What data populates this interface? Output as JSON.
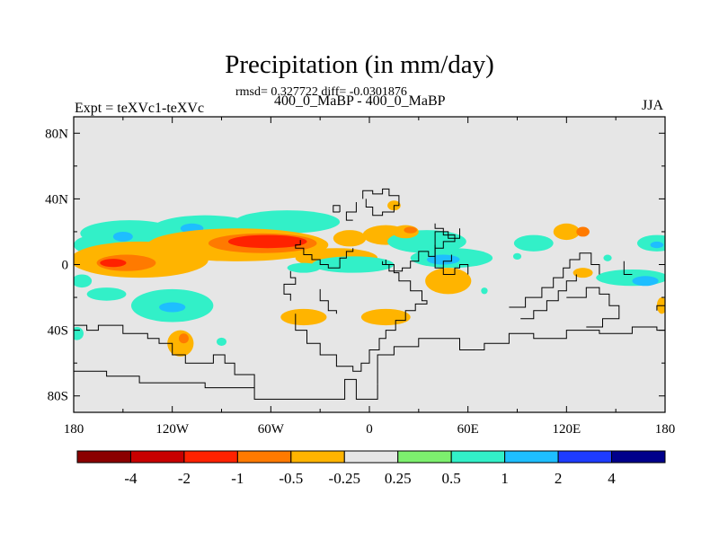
{
  "chart_data": {
    "type": "heatmap",
    "title": "Precipitation (in mm/day)",
    "subtitle": "400_0_MaBP - 400_0_MaBP",
    "stats_text": "rmsd= 0.327722 diff= -0.0301876",
    "left_label": "Expt = teXVc1-teXVc",
    "right_label": "JJA",
    "xlim": [
      -180,
      180
    ],
    "ylim": [
      -90,
      90
    ],
    "x_ticks": [
      {
        "value": -180,
        "label": "180"
      },
      {
        "value": -120,
        "label": "120W"
      },
      {
        "value": -60,
        "label": "60W"
      },
      {
        "value": 0,
        "label": "0"
      },
      {
        "value": 60,
        "label": "60E"
      },
      {
        "value": 120,
        "label": "120E"
      },
      {
        "value": 180,
        "label": "180"
      }
    ],
    "y_ticks": [
      {
        "value": 80,
        "label": "80N"
      },
      {
        "value": 40,
        "label": "40N"
      },
      {
        "value": 0,
        "label": "0"
      },
      {
        "value": -40,
        "label": "40S"
      },
      {
        "value": -80,
        "label": "80S"
      }
    ],
    "colorbar": {
      "colors": [
        "#8b0000",
        "#c80000",
        "#ff2200",
        "#ff7a00",
        "#ffb400",
        "#e6e6e6",
        "#7df06e",
        "#32f0c8",
        "#1ebeff",
        "#1e3cff",
        "#00008b"
      ],
      "labels": [
        "-4",
        "-2",
        "-1",
        "-0.5",
        "-0.25",
        "0.25",
        "0.5",
        "1",
        "2",
        "4"
      ]
    },
    "anomaly_regions": [
      {
        "lon": -166,
        "lat": 12,
        "rx": 14,
        "ry": 6,
        "level": "0.5"
      },
      {
        "lon": -146,
        "lat": 19,
        "rx": 30,
        "ry": 8,
        "level": "0.5"
      },
      {
        "lon": -150,
        "lat": 17,
        "rx": 6,
        "ry": 3,
        "level": "1"
      },
      {
        "lon": -100,
        "lat": 22,
        "rx": 32,
        "ry": 8,
        "level": "0.5"
      },
      {
        "lon": -108,
        "lat": 22,
        "rx": 7,
        "ry": 3,
        "level": "1"
      },
      {
        "lon": -50,
        "lat": 26,
        "rx": 32,
        "ry": 7,
        "level": "0.5"
      },
      {
        "lon": -12,
        "lat": 16,
        "rx": 10,
        "ry": 5,
        "level": "-0.25"
      },
      {
        "lon": 10,
        "lat": 18,
        "rx": 14,
        "ry": 6,
        "level": "-0.25"
      },
      {
        "lon": 35,
        "lat": 14,
        "rx": 24,
        "ry": 7,
        "level": "0.5"
      },
      {
        "lon": 100,
        "lat": 13,
        "rx": 12,
        "ry": 5,
        "level": "0.5"
      },
      {
        "lon": 175,
        "lat": 13,
        "rx": 12,
        "ry": 5,
        "level": "0.5"
      },
      {
        "lon": 175,
        "lat": 12,
        "rx": 4,
        "ry": 2,
        "level": "1"
      },
      {
        "lon": -140,
        "lat": 3,
        "rx": 42,
        "ry": 11,
        "level": "-0.25"
      },
      {
        "lon": -148,
        "lat": 1,
        "rx": 18,
        "ry": 5,
        "level": "-0.5"
      },
      {
        "lon": -156,
        "lat": 1,
        "rx": 8,
        "ry": 2.5,
        "level": "-1"
      },
      {
        "lon": -80,
        "lat": 12,
        "rx": 55,
        "ry": 10,
        "level": "-0.25"
      },
      {
        "lon": -65,
        "lat": 13,
        "rx": 33,
        "ry": 6,
        "level": "-0.5"
      },
      {
        "lon": -62,
        "lat": 14,
        "rx": 24,
        "ry": 4,
        "level": "-1"
      },
      {
        "lon": -20,
        "lat": 4,
        "rx": 25,
        "ry": 6,
        "level": "-0.25"
      },
      {
        "lon": 22,
        "lat": 20,
        "rx": 8,
        "ry": 4,
        "level": "-0.25"
      },
      {
        "lon": 25,
        "lat": 21,
        "rx": 4,
        "ry": 2,
        "level": "-0.5"
      },
      {
        "lon": 120,
        "lat": 20,
        "rx": 8,
        "ry": 5,
        "level": "-0.25"
      },
      {
        "lon": 130,
        "lat": 20,
        "rx": 4,
        "ry": 3,
        "level": "-0.5"
      },
      {
        "lon": 15,
        "lat": 36,
        "rx": 4,
        "ry": 3,
        "level": "-0.25"
      },
      {
        "lon": -10,
        "lat": 0,
        "rx": 25,
        "ry": 5,
        "level": "0.5"
      },
      {
        "lon": 50,
        "lat": 4,
        "rx": 25,
        "ry": 6,
        "level": "0.5"
      },
      {
        "lon": 45,
        "lat": 3,
        "rx": 10,
        "ry": 3,
        "level": "1"
      },
      {
        "lon": 160,
        "lat": -8,
        "rx": 22,
        "ry": 5,
        "level": "0.5"
      },
      {
        "lon": 168,
        "lat": -10,
        "rx": 8,
        "ry": 3,
        "level": "1"
      },
      {
        "lon": -175,
        "lat": -10,
        "rx": 6,
        "ry": 4,
        "level": "0.5"
      },
      {
        "lon": -40,
        "lat": -2,
        "rx": 10,
        "ry": 3,
        "level": "0.5"
      },
      {
        "lon": 48,
        "lat": -10,
        "rx": 14,
        "ry": 8,
        "level": "-0.25"
      },
      {
        "lon": 130,
        "lat": -5,
        "rx": 6,
        "ry": 3,
        "level": "-0.25"
      },
      {
        "lon": 178,
        "lat": -25,
        "rx": 3,
        "ry": 5,
        "level": "-0.25"
      },
      {
        "lon": -160,
        "lat": -18,
        "rx": 12,
        "ry": 4,
        "level": "0.5"
      },
      {
        "lon": -120,
        "lat": -25,
        "rx": 25,
        "ry": 10,
        "level": "0.5"
      },
      {
        "lon": -120,
        "lat": -26,
        "rx": 8,
        "ry": 3,
        "level": "1"
      },
      {
        "lon": -40,
        "lat": -32,
        "rx": 14,
        "ry": 5,
        "level": "-0.25"
      },
      {
        "lon": 10,
        "lat": -32,
        "rx": 15,
        "ry": 5,
        "level": "-0.25"
      },
      {
        "lon": -115,
        "lat": -48,
        "rx": 8,
        "ry": 8,
        "level": "-0.25"
      },
      {
        "lon": -113,
        "lat": -45,
        "rx": 3,
        "ry": 3,
        "level": "-0.5"
      },
      {
        "lon": -178,
        "lat": -42,
        "rx": 4,
        "ry": 4,
        "level": "0.5"
      },
      {
        "lon": 145,
        "lat": 4,
        "rx": 2.5,
        "ry": 2,
        "level": "0.5"
      },
      {
        "lon": 90,
        "lat": 5,
        "rx": 2.5,
        "ry": 2,
        "level": "0.5"
      },
      {
        "lon": -90,
        "lat": -47,
        "rx": 3,
        "ry": 2.5,
        "level": "0.5"
      },
      {
        "lon": 70,
        "lat": -16,
        "rx": 2,
        "ry": 2,
        "level": "0.5"
      }
    ],
    "coastlines": [
      "-180,-37 -172,-37 -172,-40 -165,-40 -165,-37 -150,-37 -150,-42 -135,-42 -135,-45 -128,-45 -128,-48 -120,-48 -120,-55 -112,-55 -112,-60 -95,-60 -95,-55 -88,-55 -88,-60 -82,-60 -82,-67 -70,-67 -70,-82 -15,-82 -15,-70 -8,-70 -8,-82 5,-82 5,-73",
      "-180,-65 -160,-65 -160,-68 -140,-68 -140,-72 -100,-72 -100,-75 -70,-75",
      "5,-73 5,-55 15,-55 15,-50 30,-50 30,-45 55,-45 55,-52 70,-52 70,-48 85,-48 85,-42 100,-42 100,-45 120,-45 120,-40 140,-40 140,-42 160,-42 160,-38 175,-38 175,-40 180,-40",
      "-45,-30 -45,-40 -38,-40 -38,-48 -30,-48 -30,-55 -20,-55 -20,-62 -10,-62 -10,-65 -5,-65 -5,-60 0,-60 0,-52 6,-52 6,-45 10,-45 10,-40 16,-40 16,-34 22,-34 22,-28 28,-28 28,-24 35,-24 35,-22 32,-22 32,-16 25,-16 25,-10 18,-10 18,-5 15,-5 15,0 10,0 10,3",
      "-30,-15 -30,-22 -25,-22 -25,-28 -20,-28 -20,-30",
      "-48,-22 -48,-18 -52,-18 -52,-12 -45,-12 -45,-8 -48,-8 -48,-4",
      "8,2 8,0 12,0 12,-4 20,-4 20,-2 25,-2 25,2 30,2 30,8 36,8 36,5 40,5 40,10 45,10 45,14 52,14 52,18 45,18 45,22 40,22 40,25",
      "-42,15 -42,12 -45,12 -45,10 -40,10 -40,6 -35,6 -35,3 -30,3 -30,0 -25,0 -25,-2 -18,-2 -18,4 -14,4 -14,8 -10,8 -10,10",
      "-4,40 -4,45 2,45 2,43 8,43 8,46 12,46 12,42 18,42 18,36 15,36 15,32 8,32 8,30 2,30 2,35 -2,35 -2,40",
      "-8,38 -8,32 -14,32 -14,27 -10,27",
      "40,12 40,-2 45,-2 45,-6 52,-6 52,-2 55,-2 55,0 60,0 60,-6",
      "45,-2 45,2 50,2 50,6",
      "85,-26 95,-26 95,-20 105,-20 105,-14 112,-14 112,-8 118,-8 118,-2 122,-2 122,3 128,3 128,7 135,7 135,0 140,0 140,-6",
      "92,-33 100,-33 100,-28 108,-28 108,-22 115,-22 115,-16 120,-16 120,-10 126,-10 126,-6",
      "120,-20 132,-20 132,-14 140,-14 140,-18 146,-18 146,-25 152,-25 152,-33 142,-33 142,-38 132,-38",
      "175,-28 175,-25 180,-25",
      "155,2 155,-6 160,-6",
      "40,10 40,20 48,20 48,16 55,16 55,22",
      "-18,32 -22,32 -22,36 -18,36 -18,32"
    ]
  }
}
